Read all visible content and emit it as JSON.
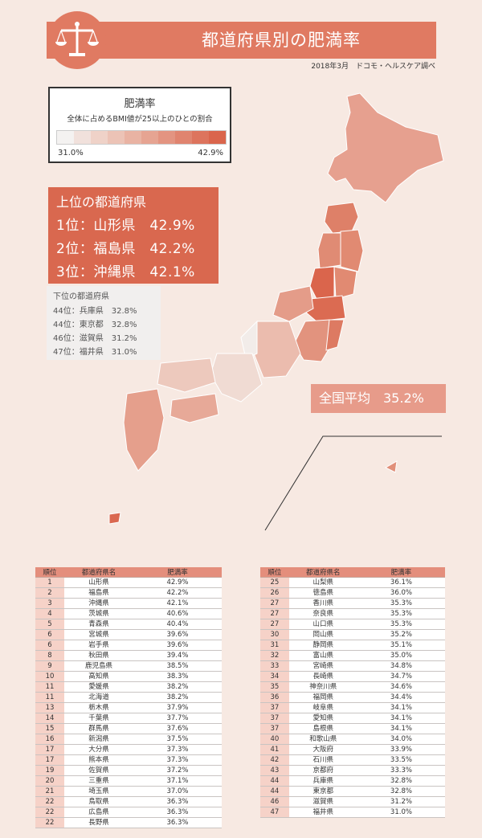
{
  "header": {
    "title": "都道府県別の肥満率",
    "source": "2018年3月　ドコモ・ヘルスケア調べ",
    "logo_icon": "balance-scale-icon"
  },
  "legend": {
    "title": "肥満率",
    "subtitle": "全体に占めるBMI値が25以上のひとの割合",
    "min": "31.0%",
    "max": "42.9%",
    "colors": [
      "#f4f2f1",
      "#f1e1dc",
      "#efd2c8",
      "#ecc3b6",
      "#e9b3a3",
      "#e6a492",
      "#e39481",
      "#e0846f",
      "#dd745d",
      "#da654c"
    ]
  },
  "top_prefectures": {
    "title": "上位の都道府県",
    "rows": [
      "1位：山形県　42.9%",
      "2位：福島県　42.2%",
      "3位：沖縄県　42.1%"
    ]
  },
  "bottom_prefectures": {
    "title": "下位の都道府県",
    "rows": [
      "44位：兵庫県　32.8%",
      "44位：東京都　32.8%",
      "46位：滋賀県　31.2%",
      "47位：福井県　31.0%"
    ]
  },
  "national_average": "全国平均　35.2%",
  "table": {
    "headers": [
      "順位",
      "都道府県名",
      "肥満率"
    ],
    "left": [
      [
        "1",
        "山形県",
        "42.9%"
      ],
      [
        "2",
        "福島県",
        "42.2%"
      ],
      [
        "3",
        "沖縄県",
        "42.1%"
      ],
      [
        "4",
        "茨城県",
        "40.6%"
      ],
      [
        "5",
        "青森県",
        "40.4%"
      ],
      [
        "6",
        "宮城県",
        "39.6%"
      ],
      [
        "6",
        "岩手県",
        "39.6%"
      ],
      [
        "8",
        "秋田県",
        "39.4%"
      ],
      [
        "9",
        "鹿児島県",
        "38.5%"
      ],
      [
        "10",
        "高知県",
        "38.3%"
      ],
      [
        "11",
        "愛媛県",
        "38.2%"
      ],
      [
        "11",
        "北海道",
        "38.2%"
      ],
      [
        "13",
        "栃木県",
        "37.9%"
      ],
      [
        "14",
        "千葉県",
        "37.7%"
      ],
      [
        "15",
        "群馬県",
        "37.6%"
      ],
      [
        "16",
        "新潟県",
        "37.5%"
      ],
      [
        "17",
        "大分県",
        "37.3%"
      ],
      [
        "17",
        "熊本県",
        "37.3%"
      ],
      [
        "19",
        "佐賀県",
        "37.2%"
      ],
      [
        "20",
        "三重県",
        "37.1%"
      ],
      [
        "21",
        "埼玉県",
        "37.0%"
      ],
      [
        "22",
        "鳥取県",
        "36.3%"
      ],
      [
        "22",
        "広島県",
        "36.3%"
      ],
      [
        "22",
        "長野県",
        "36.3%"
      ]
    ],
    "right": [
      [
        "25",
        "山梨県",
        "36.1%"
      ],
      [
        "26",
        "徳島県",
        "36.0%"
      ],
      [
        "27",
        "香川県",
        "35.3%"
      ],
      [
        "27",
        "奈良県",
        "35.3%"
      ],
      [
        "27",
        "山口県",
        "35.3%"
      ],
      [
        "30",
        "岡山県",
        "35.2%"
      ],
      [
        "31",
        "静岡県",
        "35.1%"
      ],
      [
        "32",
        "富山県",
        "35.0%"
      ],
      [
        "33",
        "宮崎県",
        "34.8%"
      ],
      [
        "34",
        "長崎県",
        "34.7%"
      ],
      [
        "35",
        "神奈川県",
        "34.6%"
      ],
      [
        "36",
        "福岡県",
        "34.4%"
      ],
      [
        "37",
        "岐阜県",
        "34.1%"
      ],
      [
        "37",
        "愛知県",
        "34.1%"
      ],
      [
        "37",
        "島根県",
        "34.1%"
      ],
      [
        "40",
        "和歌山県",
        "34.0%"
      ],
      [
        "41",
        "大阪府",
        "33.9%"
      ],
      [
        "42",
        "石川県",
        "33.5%"
      ],
      [
        "43",
        "京都府",
        "33.3%"
      ],
      [
        "44",
        "兵庫県",
        "32.8%"
      ],
      [
        "44",
        "東京都",
        "32.8%"
      ],
      [
        "46",
        "滋賀県",
        "31.2%"
      ],
      [
        "47",
        "福井県",
        "31.0%"
      ]
    ]
  }
}
